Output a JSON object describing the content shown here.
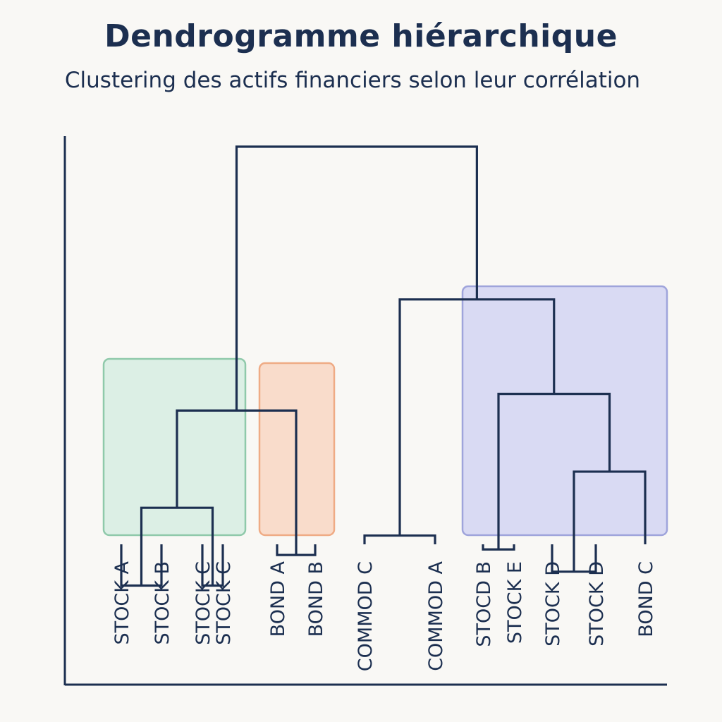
{
  "title": "Dendrogramme hiérarchique",
  "subtitle": "Clustering des actifs financiers selon leur corrélation",
  "chart_data": {
    "type": "dendrogram",
    "leaves": [
      "STOCK A",
      "STOCK B",
      "STOCK C",
      "STOCK C",
      "BOND A",
      "BOND B",
      "COMMOD C",
      "COMMOD A",
      "STOCD B",
      "STOCK E",
      "STOCK D",
      "STOCK D",
      "BOND C"
    ],
    "merges": [
      {
        "id": "m1",
        "children": [
          "leaf:0",
          "leaf:1"
        ],
        "height": 0.75
      },
      {
        "id": "m2",
        "children": [
          "leaf:2",
          "leaf:3"
        ],
        "height": 0.75
      },
      {
        "id": "m3",
        "children": [
          "m1",
          "m2"
        ],
        "height": 1.03
      },
      {
        "id": "m4",
        "children": [
          "leaf:4",
          "leaf:5"
        ],
        "height": 0.86
      },
      {
        "id": "m5",
        "children": [
          "m3",
          "m4"
        ],
        "height": 1.38
      },
      {
        "id": "m6",
        "children": [
          "leaf:6",
          "leaf:7"
        ],
        "height": 0.93
      },
      {
        "id": "m7",
        "children": [
          "leaf:8",
          "leaf:9"
        ],
        "height": 0.88
      },
      {
        "id": "m8",
        "children": [
          "leaf:10",
          "leaf:11"
        ],
        "height": 0.8
      },
      {
        "id": "m9",
        "children": [
          "m8",
          "leaf:12"
        ],
        "height": 1.16
      },
      {
        "id": "m10",
        "children": [
          "m7",
          "m9"
        ],
        "height": 1.44
      },
      {
        "id": "m11",
        "children": [
          "m6",
          "m10"
        ],
        "height": 1.78
      },
      {
        "id": "m12",
        "children": [
          "m5",
          "m11"
        ],
        "height": 2.33
      }
    ],
    "clusters": [
      {
        "leaves": [
          0,
          1,
          2,
          3
        ],
        "color": "#dcefe5",
        "border": "#8fc9aa"
      },
      {
        "leaves": [
          4,
          5
        ],
        "color": "#f9dccb",
        "border": "#efab85"
      },
      {
        "leaves": [
          8,
          9,
          10,
          11,
          12
        ],
        "color": "#d9daf3",
        "border": "#9fa4db"
      }
    ],
    "line_color": "#1c2f50",
    "grid": false
  }
}
